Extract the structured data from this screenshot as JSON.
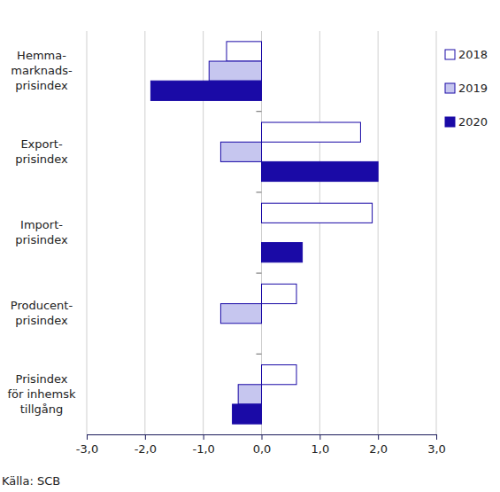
{
  "chart_data": {
    "type": "bar",
    "orientation": "horizontal",
    "categories": [
      "Hemma-\nmarknads-\nprisindex",
      "Export-\nprisindex",
      "Import-\nprisindex",
      "Producent-\nprisindex",
      "Prisindex\nför inhemsk\ntillgång"
    ],
    "series": [
      {
        "name": "2018",
        "color": "#ffffff",
        "values": [
          -0.6,
          1.7,
          1.9,
          0.6,
          0.6
        ]
      },
      {
        "name": "2019",
        "color": "#c6c6ef",
        "values": [
          -0.9,
          -0.7,
          0.0,
          -0.7,
          -0.4
        ]
      },
      {
        "name": "2020",
        "color": "#1a0aa6",
        "values": [
          -1.9,
          2.0,
          0.7,
          0.0,
          -0.5
        ]
      }
    ],
    "xlim": [
      -3,
      3
    ],
    "xticks": [
      {
        "value": -3,
        "label": "-3,0"
      },
      {
        "value": -2,
        "label": "-2,0"
      },
      {
        "value": -1,
        "label": "-1,0"
      },
      {
        "value": 0,
        "label": "0,0"
      },
      {
        "value": 1,
        "label": "1,0"
      },
      {
        "value": 2,
        "label": "2,0"
      },
      {
        "value": 3,
        "label": "3,0"
      }
    ],
    "grid": true,
    "legend": "right",
    "source": "Källa: SCB"
  }
}
